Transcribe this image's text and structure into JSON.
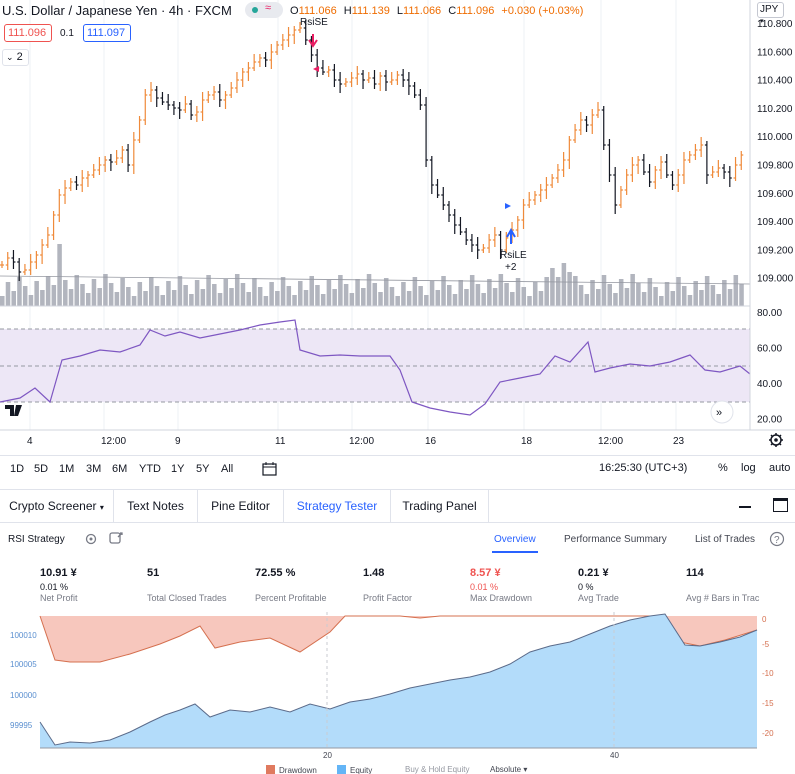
{
  "header": {
    "symbol": "U.S. Dollar / Japanese Yen · 4h · FXCM",
    "ohlc": [
      {
        "k": "O",
        "v": "111.066"
      },
      {
        "k": "H",
        "v": "111.139"
      },
      {
        "k": "L",
        "v": "111.066"
      },
      {
        "k": "C",
        "v": "111.096"
      },
      {
        "k": "",
        "v": "+0.030 (+0.03%)"
      }
    ],
    "bid": "111.096",
    "spread": "0.1",
    "ask": "111.097",
    "indicator_count": "2",
    "currency": "JPY"
  },
  "price_axis": [
    "110.800",
    "110.600",
    "110.400",
    "110.200",
    "110.000",
    "109.800",
    "109.600",
    "109.400",
    "109.200",
    "109.000"
  ],
  "rsi_axis": [
    "80.00",
    "60.00",
    "40.00",
    "20.00"
  ],
  "time_axis": [
    "4",
    "12:00",
    "9",
    "11",
    "12:00",
    "16",
    "18",
    "12:00",
    "23"
  ],
  "signals": {
    "short": "RsiSE",
    "long": "RsiLE",
    "long_qty": "+2"
  },
  "range_buttons": [
    "1D",
    "5D",
    "1M",
    "3M",
    "6M",
    "YTD",
    "1Y",
    "5Y",
    "All"
  ],
  "clock": "16:25:30 (UTC+3)",
  "scale_buttons": [
    "%",
    "log",
    "auto"
  ],
  "panel_tabs": [
    "Crypto Screener",
    "Text Notes",
    "Pine Editor",
    "Strategy Tester",
    "Trading Panel"
  ],
  "strategy": {
    "name": "RSI Strategy",
    "tabs": [
      "Overview",
      "Performance Summary",
      "List of Trades"
    ],
    "stats": [
      {
        "value": "10.91 ¥",
        "sub": "0.01 %",
        "label": "Net Profit"
      },
      {
        "value": "51",
        "sub": "",
        "label": "Total Closed Trades"
      },
      {
        "value": "72.55 %",
        "sub": "",
        "label": "Percent Profitable"
      },
      {
        "value": "1.48",
        "sub": "",
        "label": "Profit Factor"
      },
      {
        "value": "8.57 ¥",
        "sub": "0.01 %",
        "label": "Max Drawdown"
      },
      {
        "value": "0.21 ¥",
        "sub": "0 %",
        "label": "Avg Trade"
      },
      {
        "value": "114",
        "sub": "",
        "label": "Avg # Bars in Trac"
      }
    ]
  },
  "equity_chart": {
    "left_axis": [
      "100010",
      "100005",
      "100000",
      "99995"
    ],
    "right_axis": [
      "0",
      "-5",
      "-10",
      "-15",
      "-20"
    ],
    "x_axis": [
      "20",
      "40"
    ],
    "legend": [
      "Drawdown",
      "Equity",
      "Buy & Hold Equity",
      "Absolute"
    ]
  },
  "colors": {
    "up": "#ef8a3a",
    "down": "#131722",
    "volume": "#b2b5be",
    "rsi": "#7e57c2",
    "drawdown": "#f7b9ad",
    "equity": "#b3dcfa",
    "accent": "#2962ff"
  }
}
